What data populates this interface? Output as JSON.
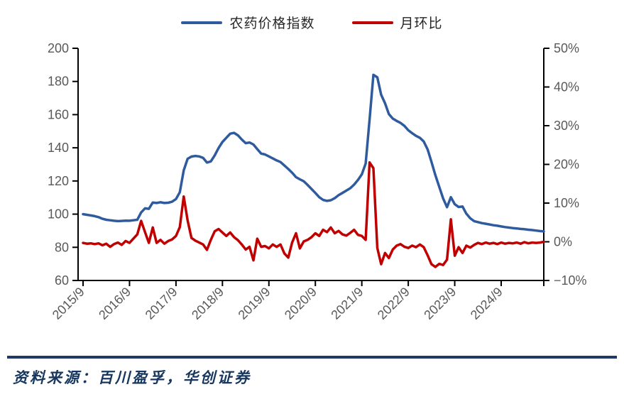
{
  "source_note": "资料来源：百川盈孚，华创证券",
  "colors": {
    "price_index_line": "#2f5b9e",
    "mom_line": "#c00000",
    "axis_text": "#595959",
    "axis_line": "#000000",
    "footer_text": "#17375e",
    "divider": "#1f3864"
  },
  "chart_data": {
    "type": "line",
    "title": "",
    "grid": false,
    "legend_position": "top",
    "x_range": {
      "start": "2015/9",
      "end": "2025/8",
      "freq": "monthly",
      "points": 120
    },
    "x_tick_labels": [
      "2015/9",
      "2016/9",
      "2017/9",
      "2018/9",
      "2019/9",
      "2020/9",
      "2021/9",
      "2022/9",
      "2023/9",
      "2024/9"
    ],
    "left_axis": {
      "min": 60,
      "max": 200,
      "tick_labels": [
        "200",
        "180",
        "160",
        "140",
        "120",
        "100",
        "80",
        "60"
      ],
      "tick_values": [
        200,
        180,
        160,
        140,
        120,
        100,
        80,
        60
      ]
    },
    "right_axis": {
      "min": -10,
      "max": 50,
      "tick_labels": [
        "50%",
        "40%",
        "30%",
        "20%",
        "10%",
        "0%",
        "−10%"
      ],
      "tick_values": [
        50,
        40,
        30,
        20,
        10,
        0,
        -10
      ]
    },
    "series": [
      {
        "name": "农药价格指数",
        "axis": "left",
        "color": "#2f5b9e",
        "values": [
          100.0,
          99.6,
          99.2,
          98.8,
          98.2,
          97.2,
          96.6,
          96.3,
          96.0,
          95.8,
          95.9,
          96.1,
          96.0,
          96.3,
          96.6,
          101.0,
          103.5,
          103.2,
          107.0,
          106.7,
          107.2,
          106.7,
          106.9,
          107.5,
          109.1,
          113.2,
          126.4,
          133.4,
          134.7,
          135.1,
          134.8,
          133.9,
          131.1,
          131.8,
          135.4,
          139.9,
          143.5,
          146.0,
          148.5,
          149.0,
          147.5,
          145.0,
          142.8,
          143.2,
          142.0,
          139.2,
          136.5,
          136.0,
          134.8,
          133.6,
          132.4,
          131.4,
          129.3,
          127.2,
          125.0,
          122.3,
          121.0,
          119.8,
          117.6,
          115.2,
          112.8,
          110.2,
          108.6,
          108.0,
          108.4,
          109.6,
          111.4,
          112.8,
          114.2,
          115.6,
          117.8,
          120.6,
          124.0,
          130.5,
          157.0,
          184.0,
          182.5,
          172.0,
          166.8,
          160.3,
          157.6,
          156.2,
          155.0,
          153.2,
          150.6,
          148.8,
          147.2,
          146.0,
          143.8,
          139.0,
          131.5,
          123.5,
          116.5,
          109.5,
          104.2,
          110.2,
          106.0,
          104.3,
          104.6,
          100.3,
          97.5,
          95.8,
          95.2,
          94.6,
          94.2,
          93.8,
          93.3,
          93.0,
          92.6,
          92.2,
          91.9,
          91.6,
          91.4,
          91.1,
          90.9,
          90.6,
          90.4,
          90.1,
          89.8,
          89.6
        ]
      },
      {
        "name": "月环比",
        "axis": "right",
        "unit": "%",
        "color": "#c00000",
        "values": [
          -0.3,
          -0.5,
          -0.4,
          -0.6,
          -0.4,
          -0.9,
          -0.5,
          -1.3,
          -0.6,
          -0.2,
          -0.8,
          0.2,
          -0.3,
          0.8,
          1.9,
          5.4,
          2.5,
          -0.3,
          3.7,
          -0.3,
          0.5,
          -0.5,
          0.2,
          0.6,
          1.5,
          3.8,
          11.7,
          5.5,
          1.0,
          0.3,
          -0.2,
          -0.7,
          -2.1,
          0.5,
          2.7,
          3.3,
          2.4,
          1.5,
          2.4,
          1.2,
          0.4,
          -0.7,
          -2.0,
          -1.3,
          -4.8,
          0.8,
          -1.3,
          -1.1,
          -1.7,
          -0.7,
          -1.3,
          -0.7,
          -3.0,
          -4.1,
          -0.2,
          2.2,
          -1.7,
          0.1,
          0.5,
          1.2,
          2.2,
          1.5,
          3.1,
          2.5,
          3.7,
          2.2,
          2.8,
          1.9,
          1.6,
          2.3,
          3.1,
          1.8,
          1.5,
          0.5,
          20.5,
          19.0,
          -1.6,
          -5.8,
          -2.9,
          -4.2,
          -2.0,
          -1.0,
          -0.6,
          -1.3,
          -1.6,
          -1.0,
          -1.4,
          -0.7,
          -1.4,
          -3.5,
          -5.8,
          -6.5,
          -5.7,
          -6.0,
          -4.6,
          5.8,
          -3.6,
          -1.4,
          -2.9,
          -1.0,
          -1.5,
          -0.8,
          -0.3,
          -0.6,
          -0.2,
          -0.5,
          -0.3,
          -0.6,
          -0.2,
          -0.5,
          -0.3,
          -0.4,
          -0.2,
          -0.5,
          -0.1,
          -0.4,
          -0.2,
          -0.3,
          -0.2,
          0.0
        ]
      }
    ]
  }
}
